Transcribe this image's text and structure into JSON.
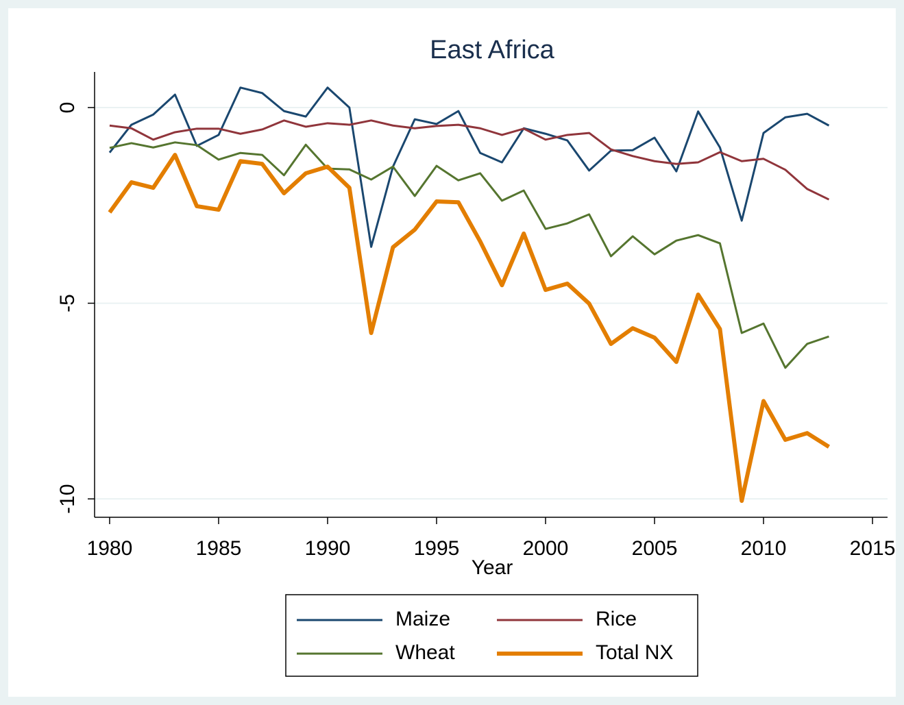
{
  "chart_data": {
    "type": "line",
    "title": "East Africa",
    "x_label": "Year",
    "x": [
      1980,
      1981,
      1982,
      1983,
      1984,
      1985,
      1986,
      1987,
      1988,
      1989,
      1990,
      1991,
      1992,
      1993,
      1994,
      1995,
      1996,
      1997,
      1998,
      1999,
      2000,
      2001,
      2002,
      2003,
      2004,
      2005,
      2006,
      2007,
      2008,
      2009,
      2010,
      2011,
      2012,
      2013
    ],
    "series": [
      {
        "name": "Maize",
        "color": "#1a476f",
        "width": 3,
        "values": [
          -1.15,
          -0.44,
          -0.18,
          0.33,
          -0.98,
          -0.7,
          0.51,
          0.37,
          -0.09,
          -0.23,
          0.51,
          0,
          -3.56,
          -1.51,
          -0.3,
          -0.42,
          -0.09,
          -1.16,
          -1.4,
          -0.53,
          -0.67,
          -0.84,
          -1.61,
          -1.1,
          -1.09,
          -0.77,
          -1.63,
          -0.1,
          -1.02,
          -2.89,
          -0.65,
          -0.25,
          -0.16,
          -0.46
        ]
      },
      {
        "name": "Rice",
        "color": "#90353b",
        "width": 3,
        "values": [
          -0.46,
          -0.53,
          -0.82,
          -0.63,
          -0.54,
          -0.54,
          -0.67,
          -0.56,
          -0.33,
          -0.49,
          -0.4,
          -0.44,
          -0.33,
          -0.46,
          -0.53,
          -0.47,
          -0.44,
          -0.53,
          -0.7,
          -0.54,
          -0.82,
          -0.7,
          -0.65,
          -1.07,
          -1.24,
          -1.37,
          -1.44,
          -1.4,
          -1.14,
          -1.37,
          -1.31,
          -1.59,
          -2.08,
          -2.35
        ]
      },
      {
        "name": "Wheat",
        "color": "#55752f",
        "width": 3,
        "values": [
          -1.03,
          -0.91,
          -1.02,
          -0.89,
          -0.96,
          -1.33,
          -1.16,
          -1.21,
          -1.73,
          -0.95,
          -1.56,
          -1.58,
          -1.84,
          -1.51,
          -2.26,
          -1.49,
          -1.86,
          -1.68,
          -2.38,
          -2.12,
          -3.1,
          -2.96,
          -2.73,
          -3.8,
          -3.29,
          -3.75,
          -3.4,
          -3.26,
          -3.47,
          -5.76,
          -5.52,
          -6.65,
          -6.04,
          -5.85
        ]
      },
      {
        "name": "Total NX",
        "color": "#e37e00",
        "width": 6,
        "values": [
          -2.68,
          -1.91,
          -2.05,
          -1.21,
          -2.52,
          -2.61,
          -1.37,
          -1.44,
          -2.19,
          -1.68,
          -1.51,
          -2.05,
          -5.76,
          -3.57,
          -3.12,
          -2.4,
          -2.42,
          -3.42,
          -4.54,
          -3.22,
          -4.66,
          -4.5,
          -5.01,
          -6.04,
          -5.64,
          -5.88,
          -6.5,
          -4.78,
          -5.66,
          -10.05,
          -7.5,
          -8.49,
          -8.32,
          -8.67
        ]
      }
    ],
    "xlim": [
      1979.31,
      2015.69
    ],
    "xticks": [
      1980,
      1985,
      1990,
      1995,
      2000,
      2005,
      2010,
      2015
    ],
    "ylim": [
      -10.47,
      0.91
    ],
    "yticks": [
      0,
      -5,
      -10
    ],
    "grid": true
  }
}
